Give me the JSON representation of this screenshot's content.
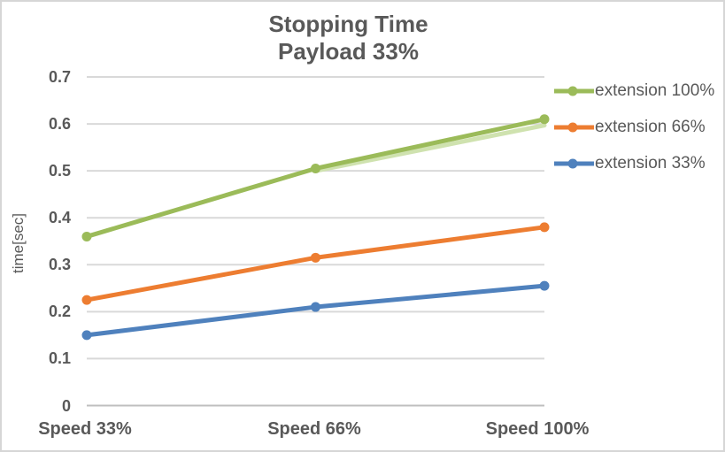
{
  "window": {
    "background": "#FFFFFF",
    "border_color": "#D6D6D6",
    "text_color": "#595959"
  },
  "chart_data": {
    "type": "line",
    "title": "Stopping Time",
    "subtitle": "Payload 33%",
    "ylabel": "time[sec]",
    "xlabel": "",
    "categories": [
      "Speed 33%",
      "Speed 66%",
      "Speed 100%"
    ],
    "series": [
      {
        "name": "extension 100%",
        "values": [
          0.36,
          0.505,
          0.61
        ],
        "color": "#9BBB59"
      },
      {
        "name": "extension 66%",
        "values": [
          0.225,
          0.315,
          0.38
        ],
        "color": "#ED7D31"
      },
      {
        "name": "extension 33%",
        "values": [
          0.15,
          0.21,
          0.255
        ],
        "color": "#4F81BD"
      }
    ],
    "ghost_series": {
      "name": "extension 100% ghost",
      "values": [
        null,
        0.5,
        0.597
      ],
      "color": "#CFE2AF",
      "note": "faint light-green duplicate line visible behind green series between Speed 66% and Speed 100%"
    },
    "ylim": [
      0,
      0.7
    ],
    "ytick_step": 0.1,
    "yticks": [
      "0",
      "0.1",
      "0.2",
      "0.3",
      "0.4",
      "0.5",
      "0.6",
      "0.7"
    ],
    "grid": true,
    "gridline_color": "#D9D9D9",
    "axisline_color": "#BFBFBF",
    "legend_position": "right",
    "marker": "circle"
  }
}
